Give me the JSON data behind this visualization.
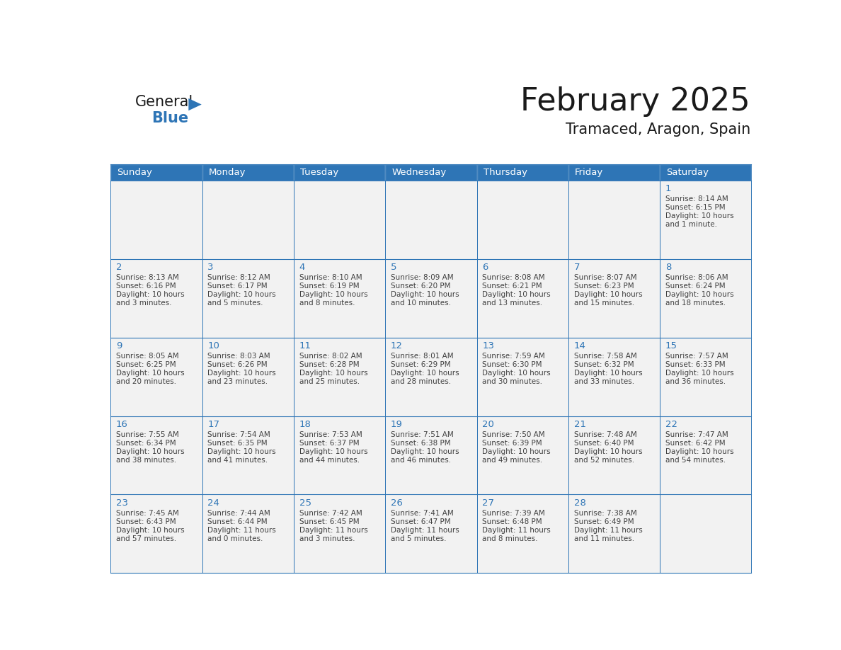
{
  "title": "February 2025",
  "subtitle": "Tramaced, Aragon, Spain",
  "days_of_week": [
    "Sunday",
    "Monday",
    "Tuesday",
    "Wednesday",
    "Thursday",
    "Friday",
    "Saturday"
  ],
  "header_bg": "#2E75B6",
  "header_text": "#FFFFFF",
  "cell_bg": "#F2F2F2",
  "border_color": "#2E75B6",
  "day_number_color": "#2E75B6",
  "text_color": "#404040",
  "title_color": "#1A1A1A",
  "logo_general_color": "#1A1A1A",
  "logo_blue_color": "#2E75B6",
  "logo_triangle_color": "#2E75B6",
  "calendar_data": [
    [
      null,
      null,
      null,
      null,
      null,
      null,
      {
        "day": 1,
        "sunrise": "8:14 AM",
        "sunset": "6:15 PM",
        "daylight_line1": "Daylight: 10 hours",
        "daylight_line2": "and 1 minute."
      }
    ],
    [
      {
        "day": 2,
        "sunrise": "8:13 AM",
        "sunset": "6:16 PM",
        "daylight_line1": "Daylight: 10 hours",
        "daylight_line2": "and 3 minutes."
      },
      {
        "day": 3,
        "sunrise": "8:12 AM",
        "sunset": "6:17 PM",
        "daylight_line1": "Daylight: 10 hours",
        "daylight_line2": "and 5 minutes."
      },
      {
        "day": 4,
        "sunrise": "8:10 AM",
        "sunset": "6:19 PM",
        "daylight_line1": "Daylight: 10 hours",
        "daylight_line2": "and 8 minutes."
      },
      {
        "day": 5,
        "sunrise": "8:09 AM",
        "sunset": "6:20 PM",
        "daylight_line1": "Daylight: 10 hours",
        "daylight_line2": "and 10 minutes."
      },
      {
        "day": 6,
        "sunrise": "8:08 AM",
        "sunset": "6:21 PM",
        "daylight_line1": "Daylight: 10 hours",
        "daylight_line2": "and 13 minutes."
      },
      {
        "day": 7,
        "sunrise": "8:07 AM",
        "sunset": "6:23 PM",
        "daylight_line1": "Daylight: 10 hours",
        "daylight_line2": "and 15 minutes."
      },
      {
        "day": 8,
        "sunrise": "8:06 AM",
        "sunset": "6:24 PM",
        "daylight_line1": "Daylight: 10 hours",
        "daylight_line2": "and 18 minutes."
      }
    ],
    [
      {
        "day": 9,
        "sunrise": "8:05 AM",
        "sunset": "6:25 PM",
        "daylight_line1": "Daylight: 10 hours",
        "daylight_line2": "and 20 minutes."
      },
      {
        "day": 10,
        "sunrise": "8:03 AM",
        "sunset": "6:26 PM",
        "daylight_line1": "Daylight: 10 hours",
        "daylight_line2": "and 23 minutes."
      },
      {
        "day": 11,
        "sunrise": "8:02 AM",
        "sunset": "6:28 PM",
        "daylight_line1": "Daylight: 10 hours",
        "daylight_line2": "and 25 minutes."
      },
      {
        "day": 12,
        "sunrise": "8:01 AM",
        "sunset": "6:29 PM",
        "daylight_line1": "Daylight: 10 hours",
        "daylight_line2": "and 28 minutes."
      },
      {
        "day": 13,
        "sunrise": "7:59 AM",
        "sunset": "6:30 PM",
        "daylight_line1": "Daylight: 10 hours",
        "daylight_line2": "and 30 minutes."
      },
      {
        "day": 14,
        "sunrise": "7:58 AM",
        "sunset": "6:32 PM",
        "daylight_line1": "Daylight: 10 hours",
        "daylight_line2": "and 33 minutes."
      },
      {
        "day": 15,
        "sunrise": "7:57 AM",
        "sunset": "6:33 PM",
        "daylight_line1": "Daylight: 10 hours",
        "daylight_line2": "and 36 minutes."
      }
    ],
    [
      {
        "day": 16,
        "sunrise": "7:55 AM",
        "sunset": "6:34 PM",
        "daylight_line1": "Daylight: 10 hours",
        "daylight_line2": "and 38 minutes."
      },
      {
        "day": 17,
        "sunrise": "7:54 AM",
        "sunset": "6:35 PM",
        "daylight_line1": "Daylight: 10 hours",
        "daylight_line2": "and 41 minutes."
      },
      {
        "day": 18,
        "sunrise": "7:53 AM",
        "sunset": "6:37 PM",
        "daylight_line1": "Daylight: 10 hours",
        "daylight_line2": "and 44 minutes."
      },
      {
        "day": 19,
        "sunrise": "7:51 AM",
        "sunset": "6:38 PM",
        "daylight_line1": "Daylight: 10 hours",
        "daylight_line2": "and 46 minutes."
      },
      {
        "day": 20,
        "sunrise": "7:50 AM",
        "sunset": "6:39 PM",
        "daylight_line1": "Daylight: 10 hours",
        "daylight_line2": "and 49 minutes."
      },
      {
        "day": 21,
        "sunrise": "7:48 AM",
        "sunset": "6:40 PM",
        "daylight_line1": "Daylight: 10 hours",
        "daylight_line2": "and 52 minutes."
      },
      {
        "day": 22,
        "sunrise": "7:47 AM",
        "sunset": "6:42 PM",
        "daylight_line1": "Daylight: 10 hours",
        "daylight_line2": "and 54 minutes."
      }
    ],
    [
      {
        "day": 23,
        "sunrise": "7:45 AM",
        "sunset": "6:43 PM",
        "daylight_line1": "Daylight: 10 hours",
        "daylight_line2": "and 57 minutes."
      },
      {
        "day": 24,
        "sunrise": "7:44 AM",
        "sunset": "6:44 PM",
        "daylight_line1": "Daylight: 11 hours",
        "daylight_line2": "and 0 minutes."
      },
      {
        "day": 25,
        "sunrise": "7:42 AM",
        "sunset": "6:45 PM",
        "daylight_line1": "Daylight: 11 hours",
        "daylight_line2": "and 3 minutes."
      },
      {
        "day": 26,
        "sunrise": "7:41 AM",
        "sunset": "6:47 PM",
        "daylight_line1": "Daylight: 11 hours",
        "daylight_line2": "and 5 minutes."
      },
      {
        "day": 27,
        "sunrise": "7:39 AM",
        "sunset": "6:48 PM",
        "daylight_line1": "Daylight: 11 hours",
        "daylight_line2": "and 8 minutes."
      },
      {
        "day": 28,
        "sunrise": "7:38 AM",
        "sunset": "6:49 PM",
        "daylight_line1": "Daylight: 11 hours",
        "daylight_line2": "and 11 minutes."
      },
      null
    ]
  ]
}
